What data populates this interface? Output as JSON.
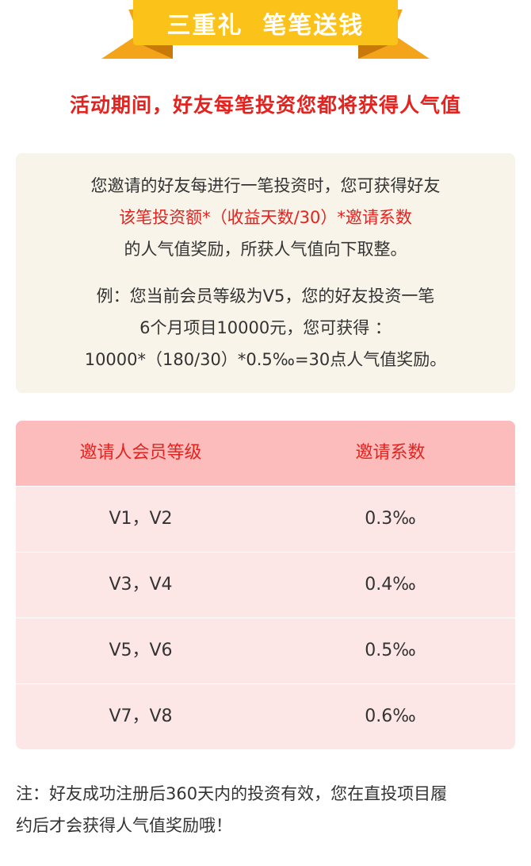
{
  "banner": {
    "title": "三重礼  笔笔送钱"
  },
  "subtitle": "活动期间，好友每笔投资您都将获得人气值",
  "info": {
    "line1": "您邀请的好友每进行一笔投资时，您可获得好友",
    "line2_highlight": "该笔投资额*（收益天数/30）*邀请系数",
    "line3": "的人气值奖励，所获人气值向下取整。",
    "example_line1": "例：您当前会员等级为V5，您的好友投资一笔",
    "example_line2": "6个月项目10000元，您可获得 ：",
    "example_line3": "10000*（180/30）*0.5‰=30点人气值奖励。"
  },
  "table": {
    "headers": [
      "邀请人会员等级",
      "邀请系数"
    ],
    "rows": [
      {
        "level": "V1，V2",
        "coefficient": "0.3‰"
      },
      {
        "level": "V3，V4",
        "coefficient": "0.4‰"
      },
      {
        "level": "V5，V6",
        "coefficient": "0.5‰"
      },
      {
        "level": "V7，V8",
        "coefficient": "0.6‰"
      }
    ]
  },
  "note": {
    "line1": "注：好友成功注册后360天内的投资有效，您在直投项目履",
    "line2": "约后才会获得人气值奖励哦！"
  },
  "colors": {
    "accent_red": "#e3231f",
    "ribbon_yellow": "#fbc21a",
    "table_header_bg": "#fdbcbc",
    "table_row_bg": "#fde6e6",
    "info_bg": "#f8f4ea"
  }
}
